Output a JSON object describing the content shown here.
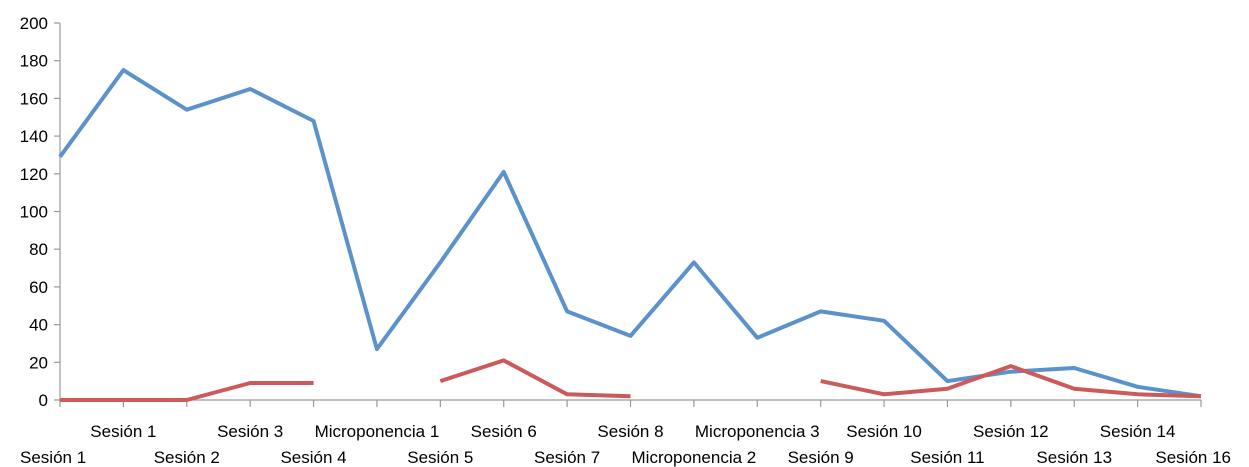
{
  "chart_data": {
    "type": "line",
    "title": "",
    "xlabel": "",
    "ylabel": "",
    "ylim": [
      0,
      200
    ],
    "yticks": [
      0,
      20,
      40,
      60,
      80,
      100,
      120,
      140,
      160,
      180,
      200
    ],
    "grid": false,
    "legend": "none",
    "categories": [
      "Sesión 1",
      "Sesión 1",
      "Sesión 2",
      "Sesión 3",
      "Sesión 4",
      "Microponencia 1",
      "Sesión 5",
      "Sesión 6",
      "Sesión 7",
      "Sesión 8",
      "Microponencia 2",
      "Microponencia 3",
      "Sesión 9",
      "Sesión 10",
      "Sesión 11",
      "Sesión 12",
      "Sesión 13",
      "Sesión 14",
      "Sesión 16"
    ],
    "series": [
      {
        "color": "#5b92cc",
        "values": [
          129,
          175,
          154,
          165,
          148,
          27,
          73,
          121,
          47,
          34,
          73,
          33,
          47,
          42,
          10,
          15,
          17,
          7,
          2
        ]
      },
      {
        "color": "#cb5a5b",
        "values": [
          0,
          0,
          0,
          9,
          9,
          null,
          10,
          21,
          3,
          2,
          null,
          null,
          10,
          3,
          6,
          18,
          6,
          3,
          2
        ]
      }
    ]
  }
}
